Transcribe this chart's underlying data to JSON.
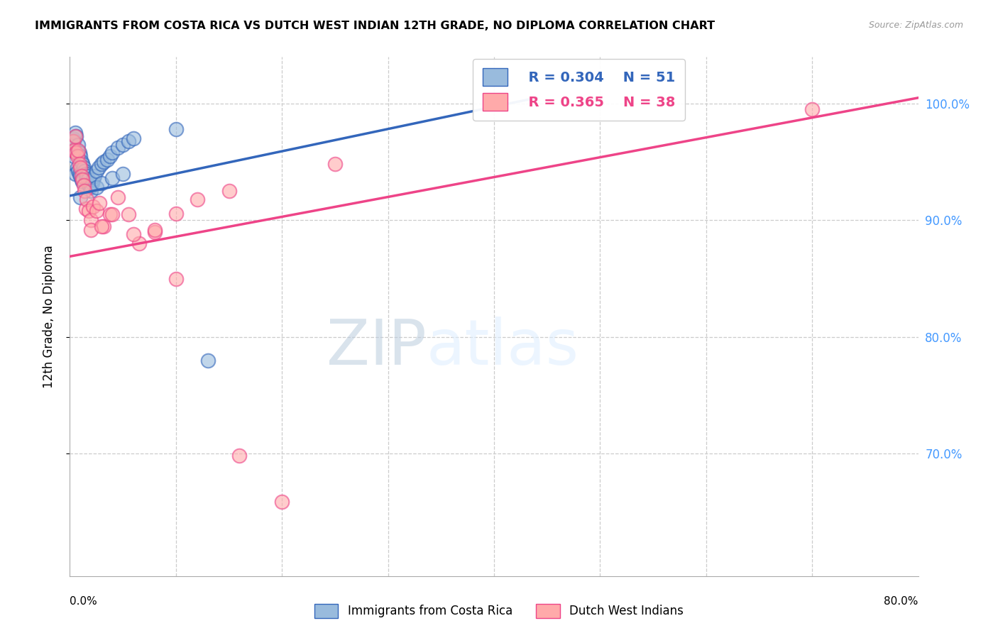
{
  "title": "IMMIGRANTS FROM COSTA RICA VS DUTCH WEST INDIAN 12TH GRADE, NO DIPLOMA CORRELATION CHART",
  "source": "Source: ZipAtlas.com",
  "ylabel": "12th Grade, No Diploma",
  "x_lim": [
    0.0,
    0.8
  ],
  "y_lim": [
    0.595,
    1.04
  ],
  "y_ticks": [
    0.7,
    0.8,
    0.9,
    1.0
  ],
  "y_tick_labels": [
    "70.0%",
    "80.0%",
    "90.0%",
    "100.0%"
  ],
  "legend_r1": "R = 0.304",
  "legend_n1": "N = 51",
  "legend_r2": "R = 0.365",
  "legend_n2": "N = 38",
  "color_blue": "#99BBDD",
  "color_pink": "#FFAAAA",
  "line_blue": "#3366BB",
  "line_pink": "#EE4488",
  "watermark_zip": "ZIP",
  "watermark_atlas": "atlas",
  "blue_x": [
    0.002,
    0.003,
    0.004,
    0.004,
    0.005,
    0.005,
    0.006,
    0.006,
    0.007,
    0.007,
    0.008,
    0.008,
    0.009,
    0.009,
    0.01,
    0.01,
    0.011,
    0.011,
    0.012,
    0.012,
    0.013,
    0.014,
    0.015,
    0.015,
    0.016,
    0.017,
    0.018,
    0.019,
    0.02,
    0.021,
    0.022,
    0.023,
    0.025,
    0.027,
    0.03,
    0.032,
    0.035,
    0.038,
    0.04,
    0.045,
    0.05,
    0.055,
    0.06,
    0.1,
    0.13,
    0.02,
    0.025,
    0.03,
    0.04,
    0.05,
    0.01
  ],
  "blue_y": [
    0.96,
    0.97,
    0.968,
    0.955,
    0.975,
    0.94,
    0.972,
    0.958,
    0.96,
    0.945,
    0.965,
    0.942,
    0.958,
    0.94,
    0.955,
    0.938,
    0.95,
    0.935,
    0.948,
    0.933,
    0.945,
    0.942,
    0.94,
    0.935,
    0.938,
    0.935,
    0.93,
    0.928,
    0.93,
    0.932,
    0.935,
    0.938,
    0.942,
    0.945,
    0.948,
    0.95,
    0.952,
    0.955,
    0.958,
    0.962,
    0.965,
    0.968,
    0.97,
    0.978,
    0.78,
    0.925,
    0.928,
    0.932,
    0.936,
    0.94,
    0.92
  ],
  "pink_x": [
    0.003,
    0.004,
    0.005,
    0.006,
    0.007,
    0.008,
    0.009,
    0.01,
    0.011,
    0.012,
    0.013,
    0.014,
    0.015,
    0.016,
    0.018,
    0.02,
    0.022,
    0.025,
    0.028,
    0.032,
    0.038,
    0.045,
    0.055,
    0.065,
    0.08,
    0.1,
    0.12,
    0.15,
    0.02,
    0.03,
    0.04,
    0.06,
    0.08,
    0.1,
    0.7,
    0.16,
    0.2,
    0.25
  ],
  "pink_y": [
    0.968,
    0.96,
    0.972,
    0.958,
    0.955,
    0.96,
    0.948,
    0.945,
    0.938,
    0.935,
    0.93,
    0.925,
    0.91,
    0.918,
    0.908,
    0.9,
    0.912,
    0.908,
    0.915,
    0.895,
    0.905,
    0.92,
    0.905,
    0.88,
    0.89,
    0.85,
    0.918,
    0.925,
    0.892,
    0.895,
    0.905,
    0.888,
    0.892,
    0.906,
    0.995,
    0.698,
    0.659,
    0.948
  ],
  "blue_trendline_x0": 0.0,
  "blue_trendline_y0": 0.921,
  "blue_trendline_x1": 0.44,
  "blue_trendline_y1": 1.005,
  "pink_trendline_x0": 0.0,
  "pink_trendline_y0": 0.869,
  "pink_trendline_x1": 0.8,
  "pink_trendline_y1": 1.005
}
